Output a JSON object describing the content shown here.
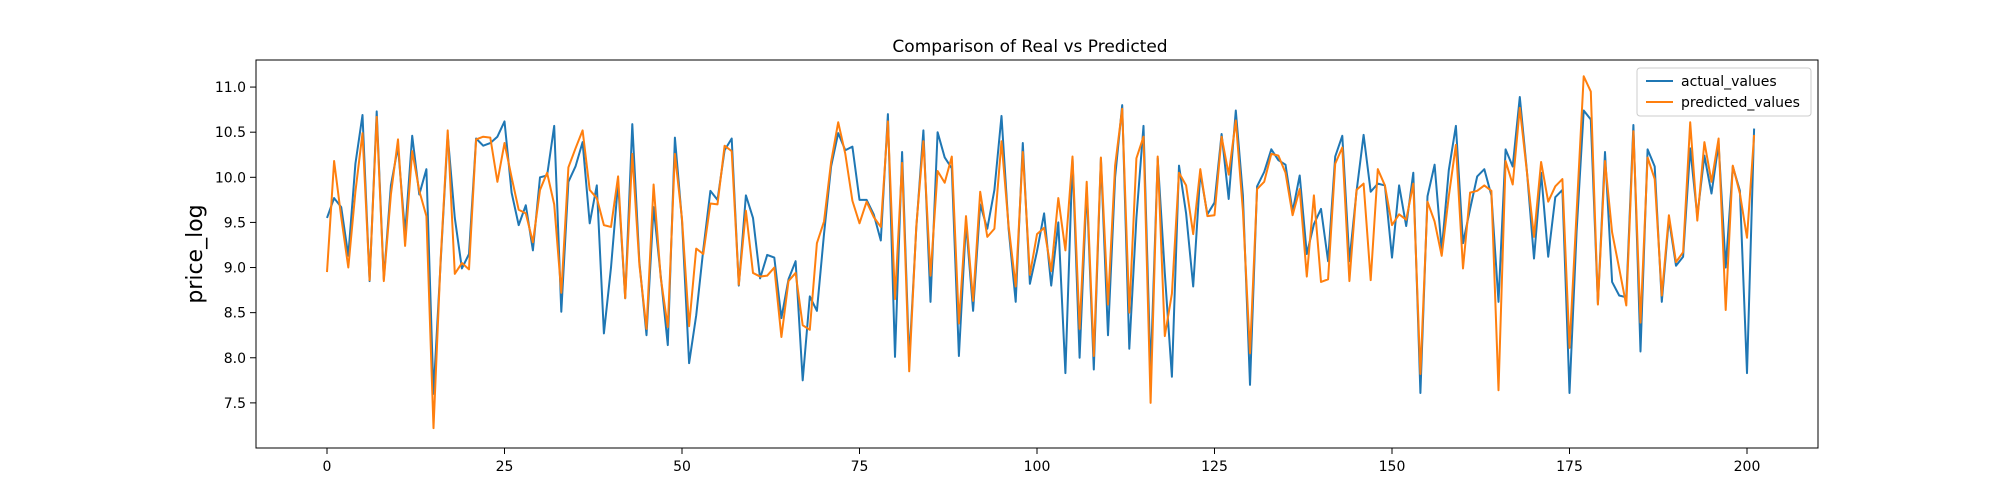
{
  "chart_data": {
    "type": "line",
    "title": "Comparison of Real vs Predicted",
    "xlabel": "",
    "ylabel": "price_log",
    "xlim": [
      -10,
      210
    ],
    "ylim": [
      7.0,
      11.3
    ],
    "xticks": [
      0,
      25,
      50,
      75,
      100,
      125,
      150,
      175,
      200
    ],
    "yticks": [
      7.5,
      8.0,
      8.5,
      9.0,
      9.5,
      10.0,
      10.5,
      11.0
    ],
    "xtick_labels": [
      "0",
      "25",
      "50",
      "75",
      "100",
      "125",
      "150",
      "175",
      "200"
    ],
    "ytick_labels": [
      "7.5",
      "8.0",
      "8.5",
      "9.0",
      "9.5",
      "10.0",
      "10.5",
      "11.0"
    ],
    "grid": false,
    "legend_position": "top-right",
    "series": [
      {
        "name": "actual_values",
        "color": "#1f77b4",
        "values": [
          9.55,
          9.77,
          9.67,
          9.13,
          10.15,
          10.69,
          8.85,
          10.73,
          8.87,
          9.91,
          10.34,
          9.38,
          10.46,
          9.81,
          10.09,
          7.6,
          9.05,
          10.47,
          9.55,
          8.99,
          9.15,
          10.43,
          10.35,
          10.38,
          10.45,
          10.62,
          9.83,
          9.47,
          9.69,
          9.19,
          10.0,
          10.02,
          10.57,
          8.51,
          9.95,
          10.12,
          10.39,
          9.49,
          9.91,
          8.27,
          9.0,
          9.94,
          8.66,
          10.59,
          9.06,
          8.25,
          9.67,
          8.91,
          8.14,
          10.44,
          9.52,
          7.94,
          8.47,
          9.2,
          9.85,
          9.75,
          10.3,
          10.43,
          8.8,
          9.8,
          9.55,
          8.88,
          9.14,
          9.11,
          8.44,
          8.87,
          9.07,
          7.75,
          8.68,
          8.52,
          9.37,
          10.12,
          10.49,
          10.3,
          10.34,
          9.75,
          9.75,
          9.59,
          9.3,
          10.7,
          8.01,
          10.28,
          7.97,
          9.44,
          10.52,
          8.62,
          10.5,
          10.22,
          10.1,
          8.02,
          9.5,
          8.52,
          9.7,
          9.43,
          9.86,
          10.68,
          9.43,
          8.62,
          10.38,
          8.82,
          9.18,
          9.6,
          8.8,
          9.5,
          7.83,
          10.21,
          8.0,
          9.89,
          7.87,
          10.21,
          8.25,
          10.0,
          10.8,
          8.1,
          9.55,
          10.57,
          7.83,
          10.21,
          8.94,
          7.79,
          10.13,
          9.6,
          8.79,
          10.05,
          9.59,
          9.72,
          10.48,
          9.76,
          10.74,
          9.8,
          7.7,
          9.9,
          10.06,
          10.31,
          10.19,
          10.14,
          9.62,
          10.02,
          9.15,
          9.48,
          9.65,
          9.07,
          10.23,
          10.46,
          9.07,
          9.84,
          10.47,
          9.84,
          9.93,
          9.91,
          9.11,
          9.91,
          9.46,
          10.05,
          7.61,
          9.79,
          10.14,
          9.19,
          10.08,
          10.57,
          9.27,
          9.65,
          10.01,
          10.09,
          9.8,
          8.62,
          10.31,
          10.12,
          10.89,
          10.07,
          9.1,
          10.05,
          9.12,
          9.78,
          9.86,
          7.61,
          9.4,
          10.74,
          10.64,
          8.6,
          10.28,
          8.84,
          8.69,
          8.67,
          10.58,
          8.07,
          10.31,
          10.12,
          8.62,
          9.54,
          9.02,
          9.12,
          10.32,
          9.57,
          10.24,
          9.82,
          10.37,
          9.0,
          10.12,
          9.85,
          7.83,
          10.54
        ]
      },
      {
        "name": "predicted_values",
        "color": "#ff7f0e",
        "values": [
          8.95,
          10.18,
          9.56,
          9.0,
          9.84,
          10.49,
          8.86,
          10.67,
          8.85,
          9.81,
          10.42,
          9.24,
          10.29,
          9.85,
          9.57,
          7.22,
          9.08,
          10.52,
          8.93,
          9.05,
          8.98,
          10.42,
          10.45,
          10.44,
          9.95,
          10.38,
          10.0,
          9.64,
          9.6,
          9.28,
          9.86,
          10.05,
          9.7,
          8.72,
          10.11,
          10.32,
          10.52,
          9.86,
          9.77,
          9.47,
          9.45,
          10.01,
          8.66,
          10.26,
          9.03,
          8.32,
          9.92,
          8.89,
          8.34,
          10.26,
          9.54,
          8.35,
          9.21,
          9.15,
          9.71,
          9.7,
          10.35,
          10.29,
          8.81,
          9.63,
          8.94,
          8.9,
          8.91,
          9.0,
          8.23,
          8.85,
          8.94,
          8.36,
          8.31,
          9.27,
          9.51,
          10.17,
          10.61,
          10.26,
          9.74,
          9.49,
          9.73,
          9.56,
          9.45,
          10.62,
          8.65,
          10.16,
          7.85,
          9.46,
          10.4,
          8.91,
          10.07,
          9.94,
          10.23,
          8.38,
          9.57,
          8.63,
          9.84,
          9.34,
          9.43,
          10.4,
          9.46,
          8.79,
          10.28,
          8.92,
          9.37,
          9.44,
          8.96,
          9.77,
          9.19,
          10.23,
          8.32,
          9.95,
          8.02,
          10.22,
          8.59,
          10.13,
          10.76,
          8.5,
          10.21,
          10.45,
          7.5,
          10.23,
          8.24,
          8.71,
          10.05,
          9.91,
          9.37,
          10.09,
          9.57,
          9.58,
          10.45,
          10.03,
          10.63,
          9.63,
          8.05,
          9.87,
          9.95,
          10.26,
          10.24,
          10.05,
          9.58,
          9.87,
          8.9,
          9.8,
          8.84,
          8.87,
          10.15,
          10.33,
          8.85,
          9.86,
          9.93,
          8.86,
          10.09,
          9.91,
          9.47,
          9.59,
          9.53,
          9.93,
          7.82,
          9.73,
          9.51,
          9.13,
          9.79,
          10.36,
          8.99,
          9.83,
          9.85,
          9.91,
          9.85,
          7.64,
          10.18,
          9.92,
          10.77,
          10.06,
          9.34,
          10.17,
          9.73,
          9.9,
          9.98,
          8.11,
          9.61,
          11.12,
          10.95,
          8.59,
          10.18,
          9.39,
          8.99,
          8.58,
          10.51,
          8.39,
          10.22,
          9.98,
          8.69,
          9.58,
          9.06,
          9.17,
          10.61,
          9.52,
          10.39,
          9.95,
          10.43,
          8.53,
          10.13,
          9.82,
          9.33,
          10.47
        ]
      }
    ]
  }
}
